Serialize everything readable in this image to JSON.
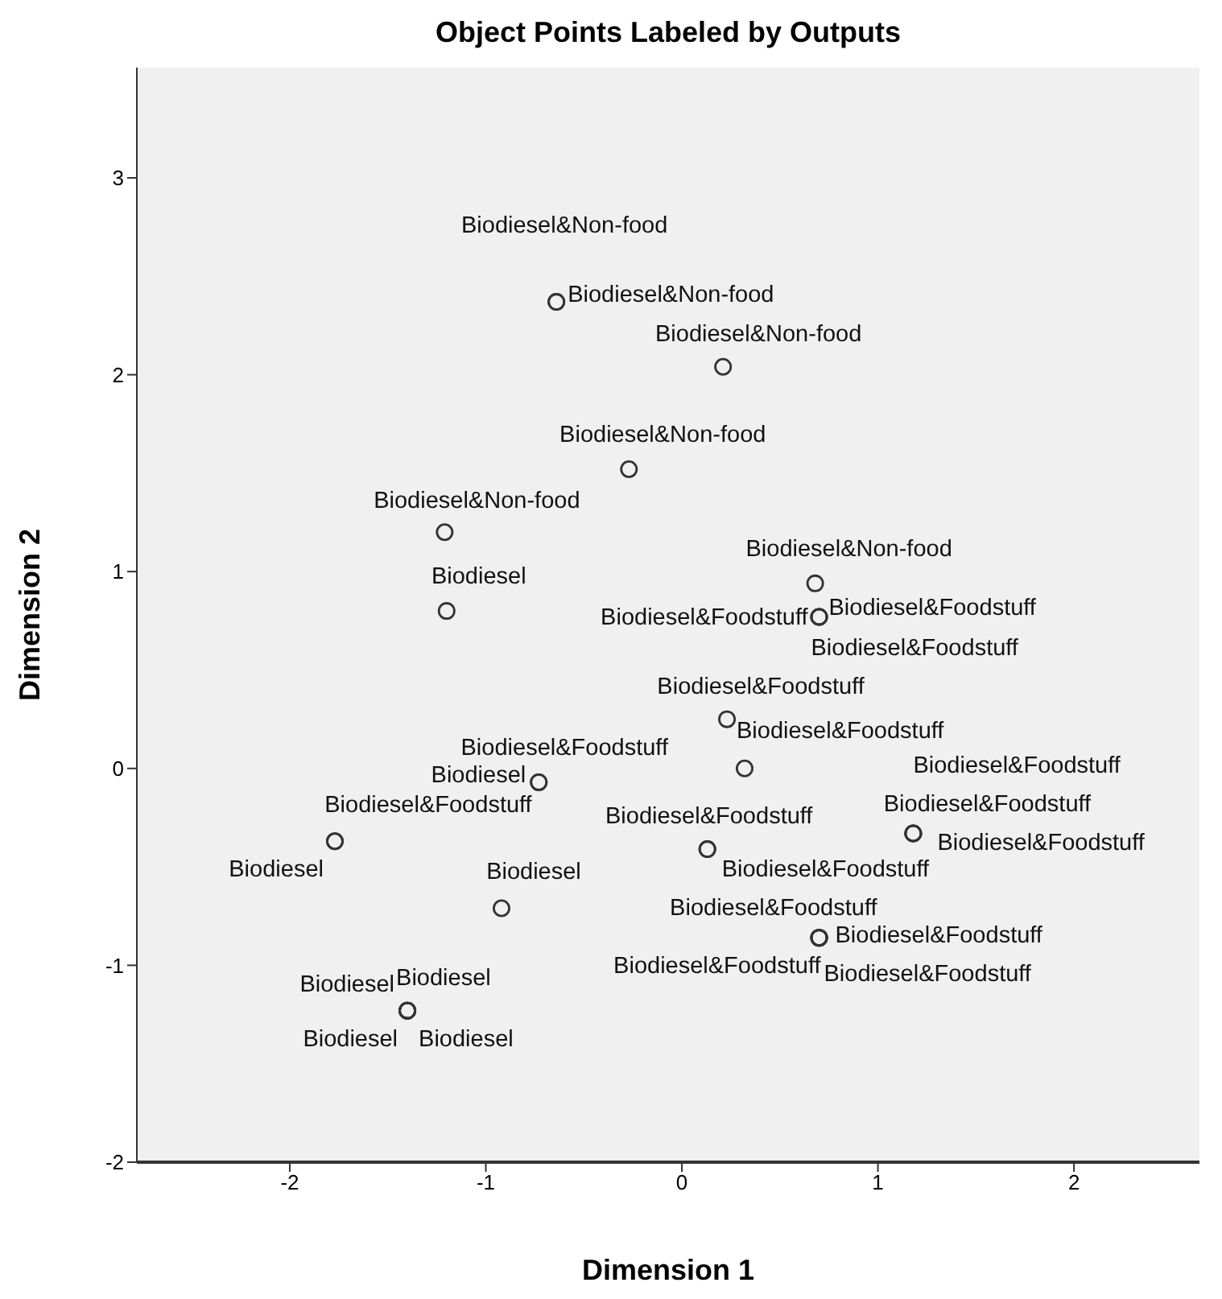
{
  "chart_data": {
    "type": "scatter",
    "title": "Object Points Labeled by Outputs",
    "xlabel": "Dimension 1",
    "ylabel": "Dimension 2",
    "xlim": [
      -2.78,
      2.64
    ],
    "xticks": [
      -2,
      -1,
      0,
      1,
      2
    ],
    "ylim": [
      -2,
      3.56
    ],
    "yticks": [
      -2,
      -1,
      0,
      1,
      2,
      3
    ],
    "grid": false,
    "legend": false,
    "marker": "circle",
    "series": [
      {
        "color": "#333333",
        "x": [
          -0.64,
          -0.64,
          0.21,
          -0.27,
          -1.21,
          0.68,
          -1.2,
          0.7,
          0.7,
          0.7,
          0.23,
          0.32,
          1.18,
          1.18,
          1.18,
          0.13,
          0.13,
          0.7,
          0.7,
          0.7,
          0.7,
          -0.73,
          -0.73,
          -1.77,
          -1.77,
          -0.92,
          -1.4,
          -1.4,
          -1.4,
          -1.4
        ],
        "values": [
          2.37,
          2.37,
          2.04,
          1.52,
          1.2,
          0.94,
          0.8,
          0.77,
          0.77,
          0.77,
          0.25,
          0.0,
          -0.33,
          -0.33,
          -0.33,
          -0.41,
          -0.41,
          -0.86,
          -0.86,
          -0.86,
          -0.86,
          -0.07,
          -0.07,
          -0.37,
          -0.37,
          -0.71,
          -1.23,
          -1.23,
          -1.23,
          -1.23
        ],
        "value_labels": [
          "Biodiesel&Non-food",
          "Biodiesel&Non-food",
          "Biodiesel&Non-food",
          "Biodiesel&Non-food",
          "Biodiesel&Non-food",
          "Biodiesel&Non-food",
          "Biodiesel",
          "Biodiesel&Foodstuff",
          "Biodiesel&Foodstuff",
          "Biodiesel&Foodstuff",
          "Biodiesel&Foodstuff",
          "Biodiesel&Foodstuff",
          "Biodiesel&Foodstuff",
          "Biodiesel&Foodstuff",
          "Biodiesel&Foodstuff",
          "Biodiesel&Foodstuff",
          "Biodiesel&Foodstuff",
          "Biodiesel&Foodstuff",
          "Biodiesel&Foodstuff",
          "Biodiesel&Foodstuff",
          "Biodiesel&Foodstuff",
          "Biodiesel&Foodstuff",
          "Biodiesel",
          "Biodiesel&Foodstuff",
          "Biodiesel",
          "Biodiesel",
          "Biodiesel",
          "Biodiesel",
          "Biodiesel",
          "Biodiesel"
        ]
      }
    ]
  }
}
